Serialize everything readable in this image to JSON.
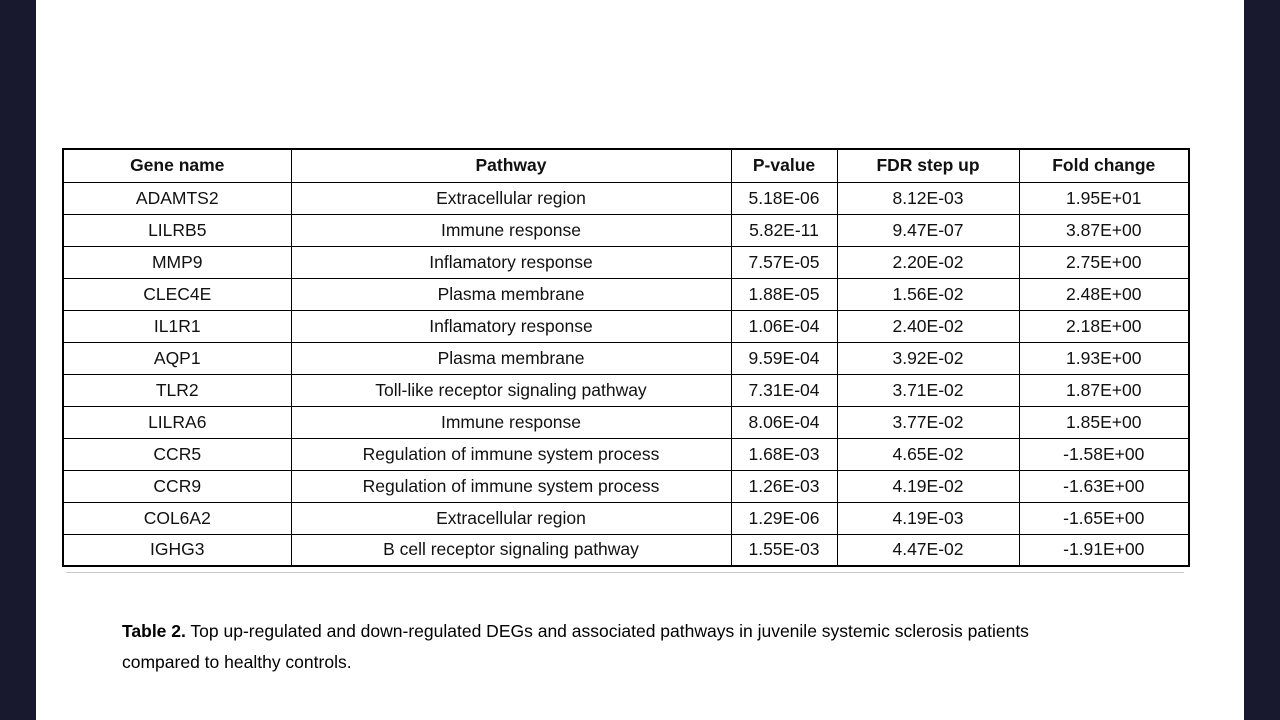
{
  "page": {
    "edge_bar_color": "#18182f",
    "background_color": "#ffffff",
    "table_border_color": "#000000"
  },
  "table": {
    "columns": [
      {
        "key": "gene",
        "label": "Gene name"
      },
      {
        "key": "pathway",
        "label": "Pathway"
      },
      {
        "key": "p_value",
        "label": "P-value"
      },
      {
        "key": "fdr",
        "label": "FDR step up"
      },
      {
        "key": "fold_change",
        "label": "Fold change"
      }
    ],
    "rows": [
      {
        "gene": "ADAMTS2",
        "pathway": "Extracellular region",
        "p_value": "5.18E-06",
        "fdr": "8.12E-03",
        "fold_change": "1.95E+01"
      },
      {
        "gene": "LILRB5",
        "pathway": "Immune response",
        "p_value": "5.82E-11",
        "fdr": "9.47E-07",
        "fold_change": "3.87E+00"
      },
      {
        "gene": "MMP9",
        "pathway": "Inflamatory response",
        "p_value": "7.57E-05",
        "fdr": "2.20E-02",
        "fold_change": "2.75E+00"
      },
      {
        "gene": "CLEC4E",
        "pathway": "Plasma membrane",
        "p_value": "1.88E-05",
        "fdr": "1.56E-02",
        "fold_change": "2.48E+00"
      },
      {
        "gene": "IL1R1",
        "pathway": "Inflamatory response",
        "p_value": "1.06E-04",
        "fdr": "2.40E-02",
        "fold_change": "2.18E+00"
      },
      {
        "gene": "AQP1",
        "pathway": "Plasma membrane",
        "p_value": "9.59E-04",
        "fdr": "3.92E-02",
        "fold_change": "1.93E+00"
      },
      {
        "gene": "TLR2",
        "pathway": "Toll-like receptor signaling pathway",
        "p_value": "7.31E-04",
        "fdr": "3.71E-02",
        "fold_change": "1.87E+00"
      },
      {
        "gene": "LILRA6",
        "pathway": "Immune response",
        "p_value": "8.06E-04",
        "fdr": "3.77E-02",
        "fold_change": "1.85E+00"
      },
      {
        "gene": "CCR5",
        "pathway": "Regulation of immune system process",
        "p_value": "1.68E-03",
        "fdr": "4.65E-02",
        "fold_change": "-1.58E+00"
      },
      {
        "gene": "CCR9",
        "pathway": "Regulation of immune system process",
        "p_value": "1.26E-03",
        "fdr": "4.19E-02",
        "fold_change": "-1.63E+00"
      },
      {
        "gene": "COL6A2",
        "pathway": "Extracellular region",
        "p_value": "1.29E-06",
        "fdr": "4.19E-03",
        "fold_change": "-1.65E+00"
      },
      {
        "gene": "IGHG3",
        "pathway": "B cell receptor signaling pathway",
        "p_value": "1.55E-03",
        "fdr": "4.47E-02",
        "fold_change": "-1.91E+00"
      }
    ]
  },
  "caption": {
    "label": "Table 2.",
    "text": " Top up-regulated and down-regulated DEGs and associated pathways in juvenile systemic sclerosis patients compared to healthy controls."
  }
}
